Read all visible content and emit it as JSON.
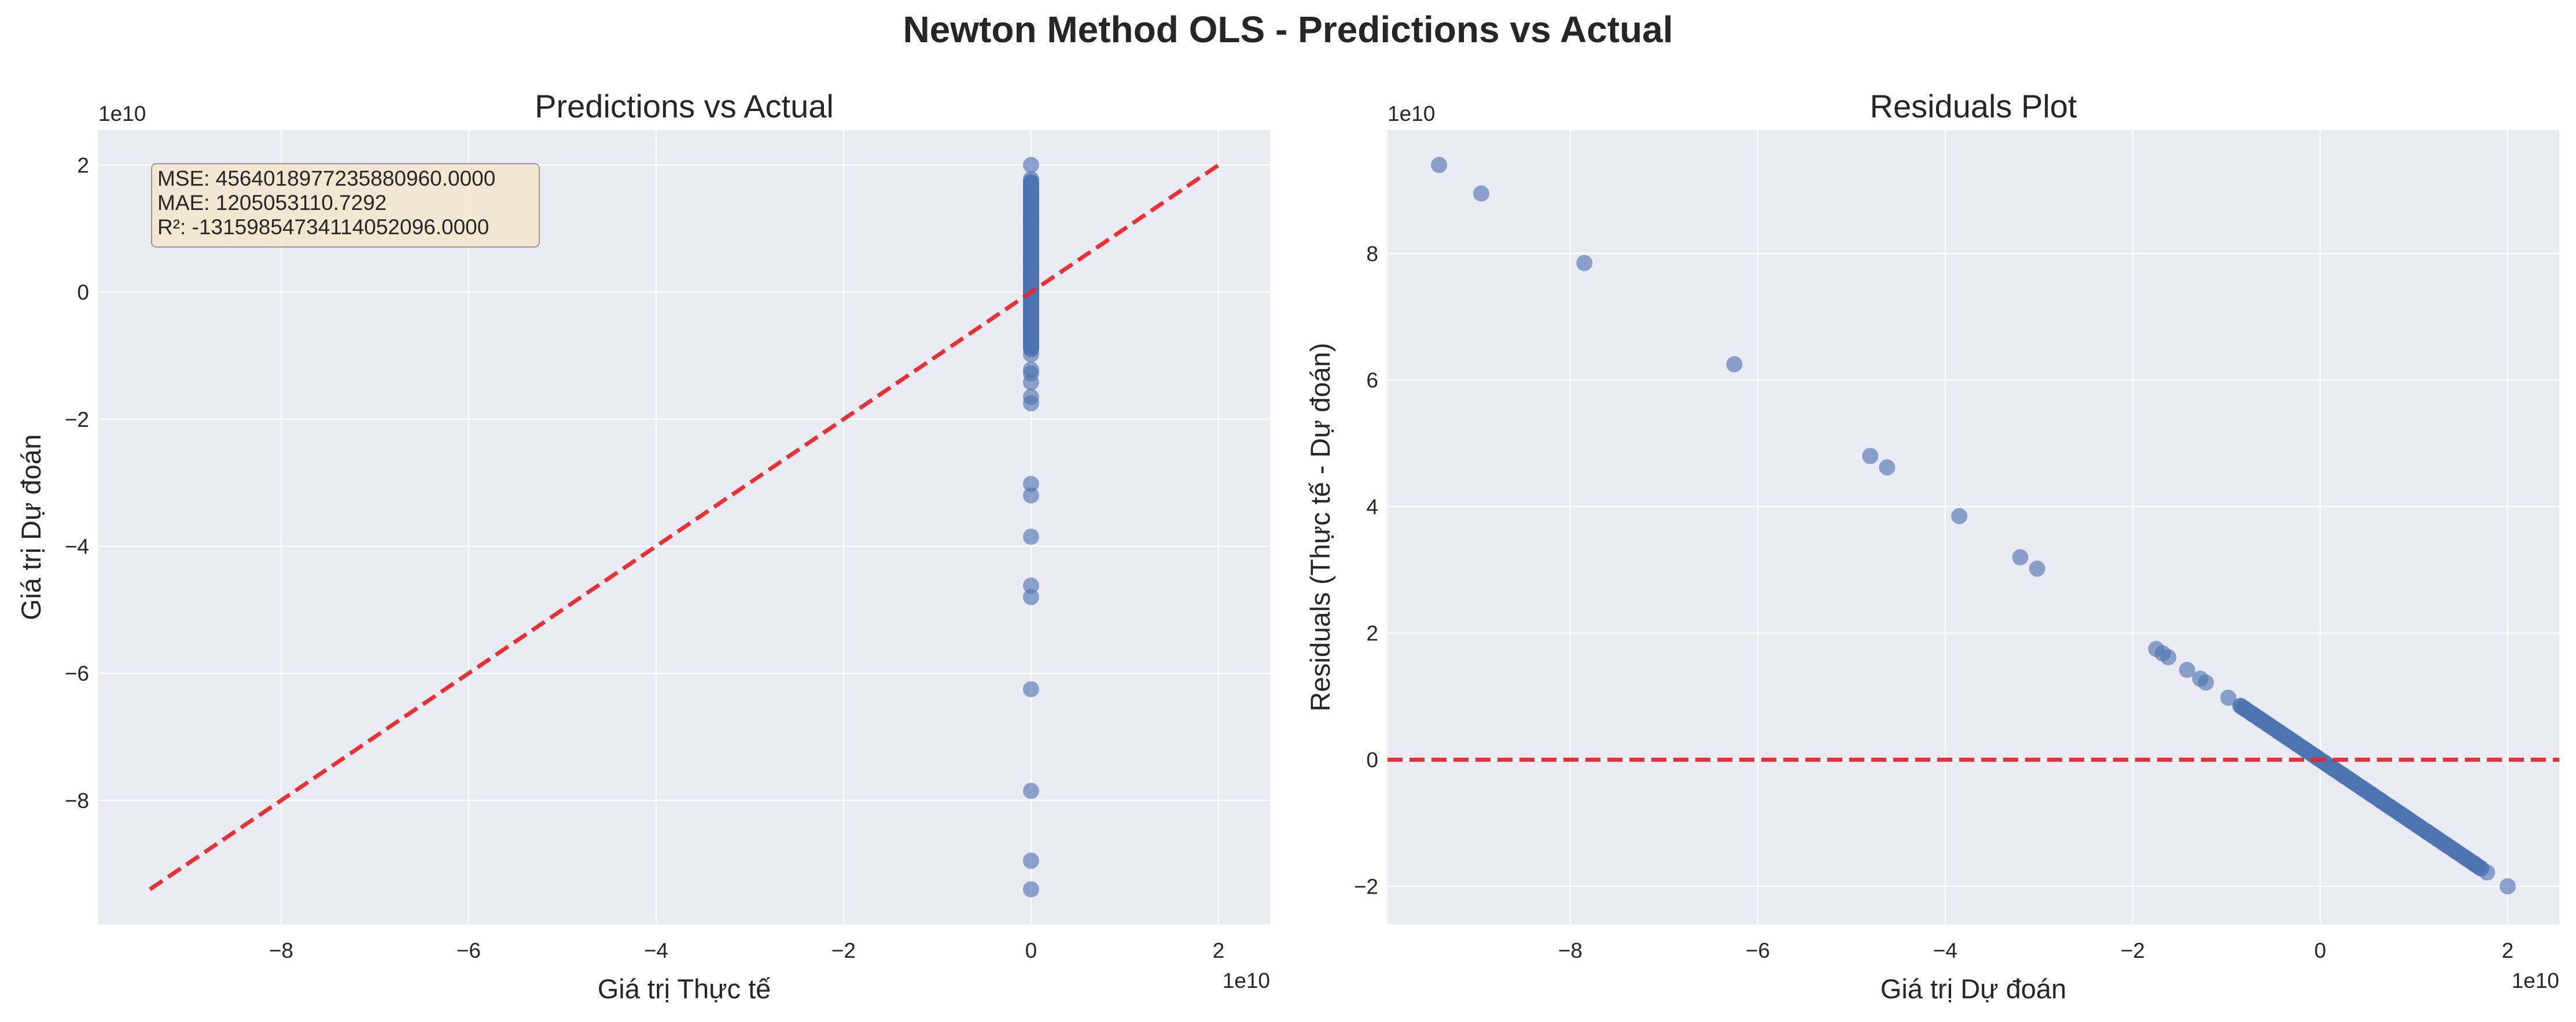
{
  "figure": {
    "title": "Newton Method OLS - Predictions vs Actual",
    "background": "#ffffff",
    "axes_face": "#eaeaf2",
    "grid_color": "#ffffff",
    "point_color": "#4c72b0",
    "line_color": "#e8262a",
    "stats_box_fill": "#f5e6cd",
    "stats_box_edge": "#999999"
  },
  "chart_data": [
    {
      "type": "scatter",
      "title": "Predictions vs Actual",
      "xlabel": "Giá trị Thực tế",
      "ylabel": "Giá trị Dự đoán",
      "x_offset_label": "1e10",
      "y_offset_label": "1e10",
      "xlim": [
        -9.95,
        2.55
      ],
      "ylim": [
        -9.95,
        2.55
      ],
      "xticks": [
        -8,
        -6,
        -4,
        -2,
        0,
        2
      ],
      "yticks": [
        -8,
        -6,
        -4,
        -2,
        0,
        2
      ],
      "xticklabels": [
        "−8",
        "−6",
        "−4",
        "−2",
        "0",
        "2"
      ],
      "yticklabels": [
        "−8",
        "−6",
        "−4",
        "−2",
        "0",
        "2"
      ],
      "grid": true,
      "reference_line": {
        "style": "dashed",
        "from": [
          -9.4,
          -9.4
        ],
        "to": [
          2.0,
          2.0
        ]
      },
      "stats": [
        "MSE: 4564018977235880960.0000",
        "MAE: 1205053110.7292",
        "R²: -1315985473411405209​6.0000"
      ],
      "points": {
        "x": [
          0,
          0,
          0,
          0,
          0,
          0,
          0,
          0,
          0,
          0,
          0,
          0,
          0,
          0,
          0,
          0,
          0,
          0,
          0,
          0,
          0,
          0,
          0,
          0,
          0,
          0,
          0,
          0,
          0,
          0,
          0,
          0,
          0,
          0,
          0,
          0,
          0,
          0,
          0,
          0,
          0,
          0,
          0,
          0,
          0,
          0,
          0,
          0,
          0,
          0,
          0,
          0,
          0,
          0,
          0,
          0,
          0,
          0,
          0,
          0,
          0,
          0,
          0,
          0,
          0,
          0,
          0
        ],
        "y": [
          -9.4,
          -8.95,
          -7.85,
          -6.25,
          -4.8,
          -4.62,
          -3.85,
          -3.2,
          -3.02,
          -1.75,
          -1.65,
          -1.42,
          -1.28,
          -1.22,
          -0.98,
          -0.85,
          -0.8,
          -0.72,
          -0.65,
          -0.55,
          -0.45,
          -0.35,
          -0.25,
          -0.15,
          -0.05,
          0.05,
          0.15,
          0.25,
          0.35,
          0.45,
          0.55,
          0.65,
          0.75,
          0.85,
          0.95,
          1.05,
          1.15,
          1.25,
          1.35,
          1.45,
          1.55,
          1.65,
          1.72,
          1.78,
          2.0,
          -0.6,
          -0.5,
          -0.4,
          -0.3,
          -0.2,
          -0.1,
          0.0,
          0.1,
          0.2,
          0.3,
          0.4,
          0.5,
          0.6,
          0.7,
          0.8,
          0.9,
          1.0,
          1.1,
          1.2,
          1.3,
          1.4,
          1.5
        ]
      }
    },
    {
      "type": "scatter",
      "title": "Residuals Plot",
      "xlabel": "Giá trị Dự đoán",
      "ylabel": "Residuals (Thực tế - Dự đoán)",
      "x_offset_label": "1e10",
      "y_offset_label": "1e10",
      "xlim": [
        -9.95,
        2.55
      ],
      "ylim": [
        -2.6,
        9.95
      ],
      "xticks": [
        -8,
        -6,
        -4,
        -2,
        0,
        2
      ],
      "yticks": [
        -2,
        0,
        2,
        4,
        6,
        8
      ],
      "xticklabels": [
        "−8",
        "−6",
        "−4",
        "−2",
        "0",
        "2"
      ],
      "yticklabels": [
        "−2",
        "0",
        "2",
        "4",
        "6",
        "8"
      ],
      "grid": true,
      "reference_line": {
        "style": "dashed",
        "y": 0
      },
      "points": {
        "x": [
          -9.4,
          -8.95,
          -7.85,
          -6.25,
          -4.8,
          -4.62,
          -3.85,
          -3.2,
          -3.02,
          -1.75,
          -1.68,
          -1.62,
          -1.42,
          -1.28,
          -1.22,
          -0.98,
          -0.85,
          -0.8,
          -0.72,
          -0.65,
          -0.55,
          -0.45,
          -0.35,
          -0.25,
          -0.15,
          -0.05,
          0.05,
          0.15,
          0.25,
          0.35,
          0.45,
          0.55,
          0.65,
          0.75,
          0.85,
          0.95,
          1.05,
          1.15,
          1.25,
          1.35,
          1.45,
          1.55,
          1.65,
          1.72,
          1.78,
          2.0
        ],
        "y": [
          9.4,
          8.95,
          7.85,
          6.25,
          4.8,
          4.62,
          3.85,
          3.2,
          3.02,
          1.75,
          1.68,
          1.62,
          1.42,
          1.28,
          1.22,
          0.98,
          0.85,
          0.8,
          0.72,
          0.65,
          0.55,
          0.45,
          0.35,
          0.25,
          0.15,
          0.05,
          -0.05,
          -0.15,
          -0.25,
          -0.35,
          -0.45,
          -0.55,
          -0.65,
          -0.75,
          -0.85,
          -0.95,
          -1.05,
          -1.15,
          -1.25,
          -1.35,
          -1.45,
          -1.55,
          -1.65,
          -1.72,
          -1.78,
          -2.0
        ]
      }
    }
  ]
}
